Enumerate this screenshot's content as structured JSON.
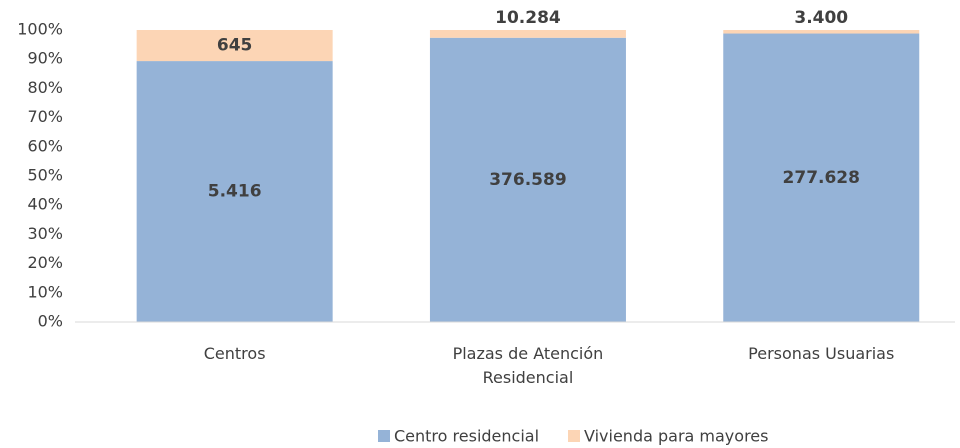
{
  "chart_data": {
    "type": "stacked_percent_bar",
    "categories": [
      "Centros",
      "Plazas de Atención Residencial",
      "Personas Usuarias"
    ],
    "series": [
      {
        "name": "Centro residencial",
        "color": "#95b3d7",
        "values": [
          5416,
          376589,
          277628
        ],
        "value_labels": [
          "5.416",
          "376.589",
          "277.628"
        ]
      },
      {
        "name": "Vivienda para mayores",
        "color": "#fcd5b5",
        "values": [
          645,
          10284,
          3400
        ],
        "value_labels": [
          "645",
          "10.284",
          "3.400"
        ]
      }
    ],
    "ylim": [
      0,
      100
    ],
    "yticks": [
      {
        "value": 0,
        "label": "0%"
      },
      {
        "value": 10,
        "label": "10%"
      },
      {
        "value": 20,
        "label": "20%"
      },
      {
        "value": 30,
        "label": "30%"
      },
      {
        "value": 40,
        "label": "40%"
      },
      {
        "value": 50,
        "label": "50%"
      },
      {
        "value": 60,
        "label": "60%"
      },
      {
        "value": 70,
        "label": "70%"
      },
      {
        "value": 80,
        "label": "80%"
      },
      {
        "value": 90,
        "label": "90%"
      },
      {
        "value": 100,
        "label": "100%"
      }
    ],
    "grid": false,
    "legend": "bottom"
  }
}
